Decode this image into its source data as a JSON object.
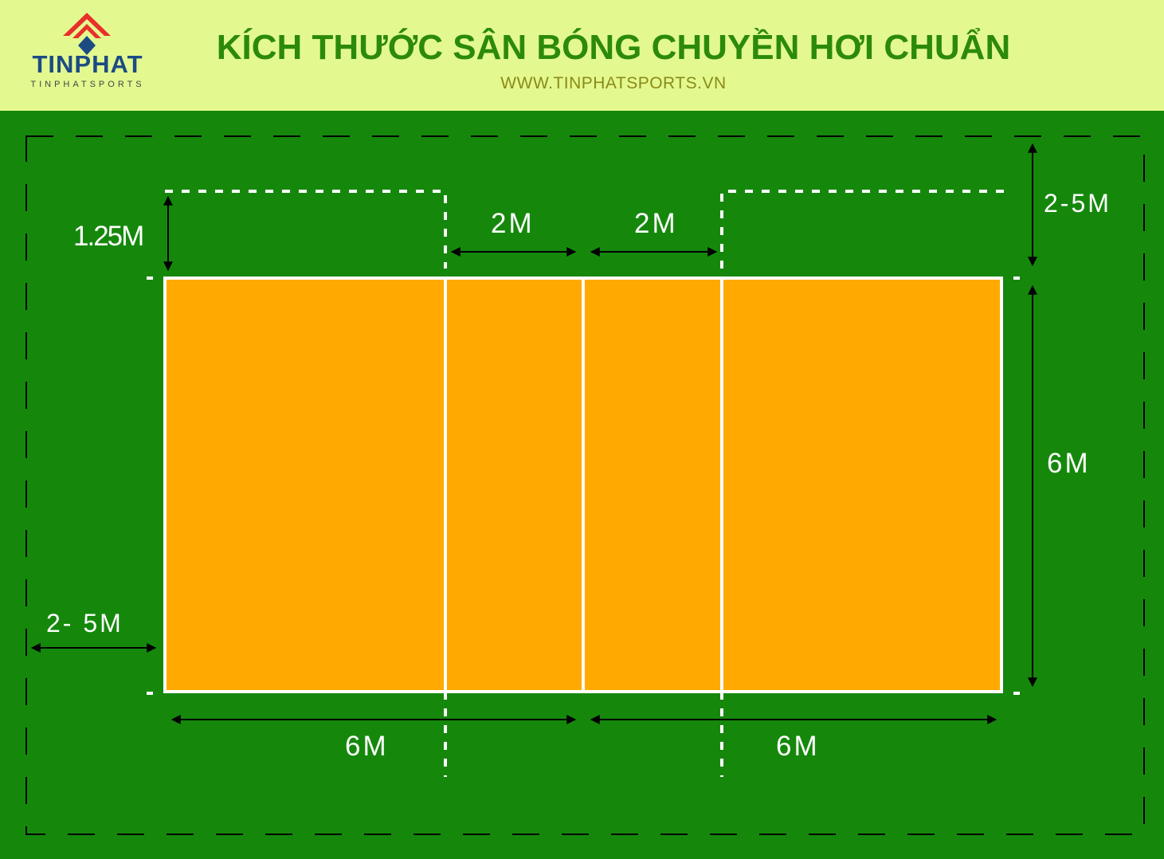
{
  "header": {
    "logo_name": "TINPHAT",
    "logo_subtitle": "TINPHATSPORTS",
    "title": "KÍCH THƯỚC SÂN BÓNG CHUYỀN HƠI CHUẨN",
    "website": "WWW.TINPHATSPORTS.VN"
  },
  "dimensions": {
    "top_clearance": "1.25M",
    "zone_left": "2M",
    "zone_right": "2M",
    "end_free_zone": "2-5M",
    "court_width": "6M",
    "side_free_zone": "2- 5M",
    "half_left": "6M",
    "half_right": "6M"
  },
  "colors": {
    "header_bg": "#e3f98f",
    "title": "#2c8a0a",
    "website": "#8b8a17",
    "field": "#15880c",
    "court": "#ffa901",
    "lines": "#ffffff",
    "logo_red": "#e8302a",
    "logo_blue": "#1c4b84"
  },
  "icons": {
    "logo": "tinphat-logo-icon"
  }
}
